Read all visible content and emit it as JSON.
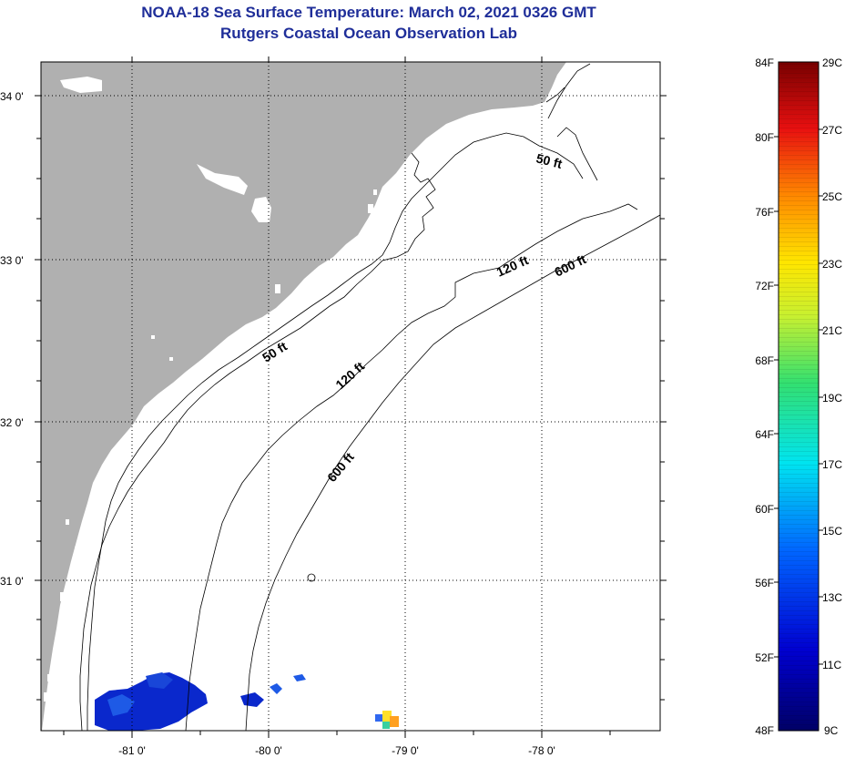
{
  "header": {
    "title": "NOAA-18 Sea Surface Temperature:  March 02, 2021 0326 GMT",
    "subtitle": "Rutgers Coastal Ocean Observation Lab"
  },
  "map": {
    "lat_labels": [
      "34 0'",
      "33 0'",
      "32 0'",
      "31 0'"
    ],
    "lon_labels": [
      "-81 0'",
      "-80 0'",
      "-79 0'",
      "-78 0'"
    ],
    "contours": [
      {
        "label": "50 ft"
      },
      {
        "label": "50 ft"
      },
      {
        "label": "120 ft"
      },
      {
        "label": "120 ft"
      },
      {
        "label": "600 ft"
      },
      {
        "label": "600 ft"
      }
    ],
    "colors": {
      "land": "#b0b0b0",
      "water": "#ffffff"
    }
  },
  "colorbar": {
    "fahrenheit": [
      "84F",
      "80F",
      "76F",
      "72F",
      "68F",
      "64F",
      "60F",
      "56F",
      "52F",
      "48F"
    ],
    "celsius": [
      "29C",
      "27C",
      "25C",
      "23C",
      "21C",
      "19C",
      "17C",
      "15C",
      "13C",
      "11C",
      "9C"
    ]
  }
}
